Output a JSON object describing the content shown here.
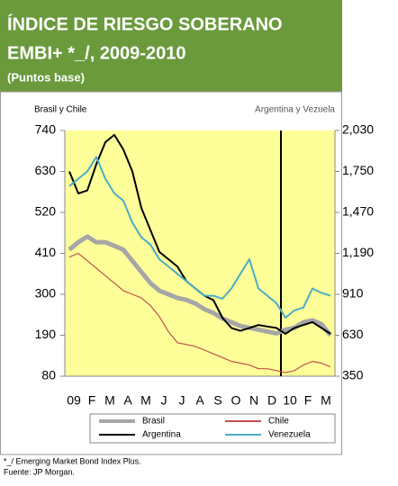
{
  "chart_data": {
    "type": "line",
    "title": [
      "ÍNDICE DE RIESGO SOBERANO",
      "EMBI+ *_/, 2009-2010"
    ],
    "subtitle": "(Puntos base)",
    "y_label": "Brasil y Chile",
    "y2_label": "Argentina y Vezuela",
    "categories": [
      "09",
      null,
      "F",
      null,
      "M",
      null,
      "A",
      null,
      "M",
      null,
      "J",
      null,
      "J",
      null,
      "A",
      null,
      "S",
      null,
      "O",
      null,
      "N",
      null,
      "D",
      null,
      "10",
      null,
      "F",
      null,
      "M",
      null
    ],
    "ylim": [
      80,
      740
    ],
    "yticks": [
      80,
      190,
      300,
      410,
      520,
      630,
      740
    ],
    "y2lim": [
      350,
      2030
    ],
    "y2ticks": [
      350,
      630,
      910,
      {
        "value": 1190,
        "label": "1,190"
      },
      {
        "value": 1470,
        "label": "1,470"
      },
      {
        "value": 1750,
        "label": "1,750"
      },
      {
        "value": 2030,
        "label": "2,030"
      }
    ],
    "series": [
      {
        "name": "Brasil",
        "color": "#a6a6a6",
        "values": [
          420,
          440,
          455,
          440,
          440,
          430,
          420,
          390,
          360,
          330,
          310,
          300,
          290,
          285,
          275,
          260,
          250,
          235,
          225,
          215,
          210,
          205,
          200,
          195,
          205,
          210,
          225,
          230,
          220,
          190
        ]
      },
      {
        "name": "Chile",
        "color": "#c0504d",
        "values": [
          400,
          410,
          390,
          370,
          350,
          330,
          310,
          300,
          290,
          270,
          240,
          200,
          170,
          165,
          160,
          150,
          140,
          130,
          120,
          115,
          110,
          100,
          100,
          95,
          90,
          95,
          110,
          120,
          115,
          105
        ]
      },
      {
        "name": "Argentina",
        "color": "#000000",
        "axis": "y2",
        "values": [
          1750,
          1600,
          1620,
          1800,
          1950,
          2000,
          1900,
          1750,
          1500,
          1350,
          1200,
          1150,
          1100,
          1000,
          950,
          900,
          870,
          750,
          680,
          660,
          680,
          700,
          690,
          680,
          640,
          680,
          700,
          720,
          680,
          640
        ]
      },
      {
        "name": "Venezuela",
        "color": "#4bacc6",
        "axis": "y2",
        "values": [
          1650,
          1700,
          1750,
          1850,
          1700,
          1600,
          1550,
          1400,
          1300,
          1250,
          1150,
          1100,
          1050,
          1000,
          950,
          900,
          900,
          880,
          950,
          1050,
          1150,
          950,
          900,
          850,
          750,
          800,
          820,
          950,
          920,
          900
        ]
      }
    ],
    "notes": [
      "*_/ Emerging Market Bond Index Plus.",
      "Fuente: JP Morgan."
    ]
  }
}
